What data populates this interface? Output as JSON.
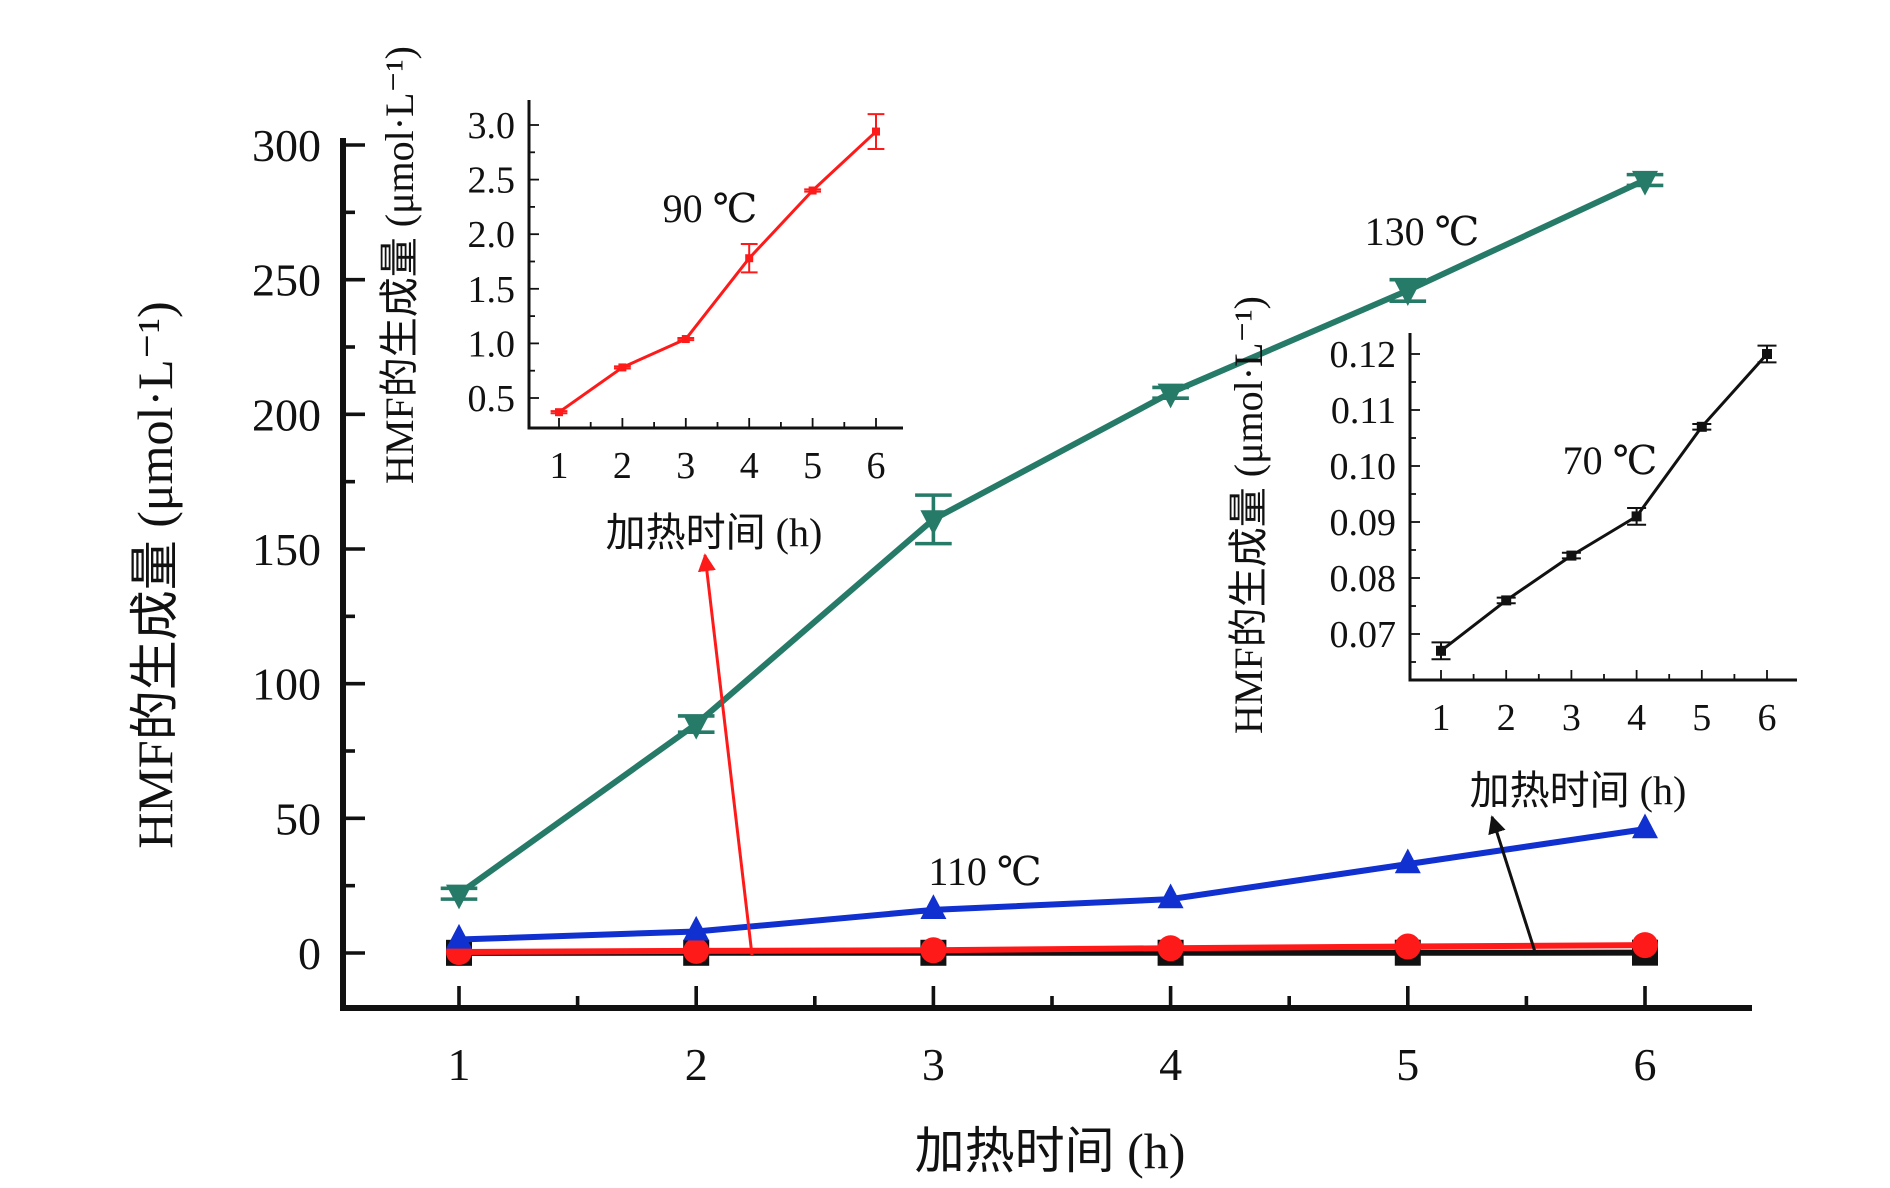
{
  "chart_data": [
    {
      "id": "main",
      "type": "line",
      "xlabel": "加热时间 (h)",
      "ylabel": "HMF的生成量 (μmol·L⁻¹)",
      "xlim": [
        0.5,
        6.5
      ],
      "ylim": [
        -20,
        300
      ],
      "xticks": [
        "1",
        "2",
        "3",
        "4",
        "5",
        "6"
      ],
      "yticks": [
        "0",
        "50",
        "100",
        "150",
        "200",
        "250",
        "300"
      ],
      "x": [
        1,
        2,
        3,
        4,
        5,
        6
      ],
      "series": [
        {
          "name": "70 ℃",
          "color": "#111111",
          "marker": "square",
          "values": [
            0.067,
            0.076,
            0.084,
            0.091,
            0.107,
            0.12
          ]
        },
        {
          "name": "90 ℃",
          "color": "#ff1a1a",
          "marker": "circle",
          "values": [
            0.37,
            0.78,
            1.04,
            1.78,
            2.4,
            2.94
          ]
        },
        {
          "name": "110 ℃",
          "color": "#1030d0",
          "marker": "triangle-up",
          "values": [
            5,
            8,
            16,
            20,
            33,
            46
          ]
        },
        {
          "name": "130 ℃",
          "color": "#267a68",
          "marker": "triangle-down",
          "values": [
            22,
            85,
            161,
            208,
            246,
            287
          ],
          "errors": [
            2,
            3,
            9,
            2,
            4,
            2
          ]
        }
      ],
      "annotations": [
        {
          "text": "110 ℃",
          "series": "110 ℃"
        },
        {
          "text": "130 ℃",
          "series": "130 ℃"
        }
      ]
    },
    {
      "id": "inset-90",
      "type": "line",
      "xlabel": "加热时间 (h)",
      "ylabel": "HMF的生成量 (μmol·L⁻¹)",
      "xlim": [
        0.5,
        6.5
      ],
      "ylim": [
        0.22,
        3.15
      ],
      "xticks": [
        "1",
        "2",
        "3",
        "4",
        "5",
        "6"
      ],
      "yticks": [
        "0.5",
        "1.0",
        "1.5",
        "2.0",
        "2.5",
        "3.0"
      ],
      "x": [
        1,
        2,
        3,
        4,
        5,
        6
      ],
      "series": [
        {
          "name": "90 ℃",
          "color": "#ff1a1a",
          "values": [
            0.37,
            0.78,
            1.04,
            1.78,
            2.4,
            2.94
          ],
          "errors": [
            0.01,
            0.01,
            0.01,
            0.13,
            0.01,
            0.16
          ]
        }
      ],
      "annotations": [
        {
          "text": "90 ℃"
        }
      ]
    },
    {
      "id": "inset-70",
      "type": "line",
      "xlabel": "加热时间 (h)",
      "ylabel": "HMF的生成量 (μmol·L⁻¹)",
      "xlim": [
        0.5,
        6.5
      ],
      "ylim": [
        0.062,
        0.124
      ],
      "xticks": [
        "1",
        "2",
        "3",
        "4",
        "5",
        "6"
      ],
      "yticks": [
        "0.07",
        "0.08",
        "0.09",
        "0.10",
        "0.11",
        "0.12"
      ],
      "x": [
        1,
        2,
        3,
        4,
        5,
        6
      ],
      "series": [
        {
          "name": "70 ℃",
          "color": "#111111",
          "values": [
            0.067,
            0.076,
            0.084,
            0.091,
            0.107,
            0.12
          ],
          "errors": [
            0.0015,
            0.0005,
            0.0005,
            0.0015,
            0.0005,
            0.0015
          ]
        }
      ],
      "annotations": [
        {
          "text": "70 ℃"
        }
      ]
    }
  ]
}
